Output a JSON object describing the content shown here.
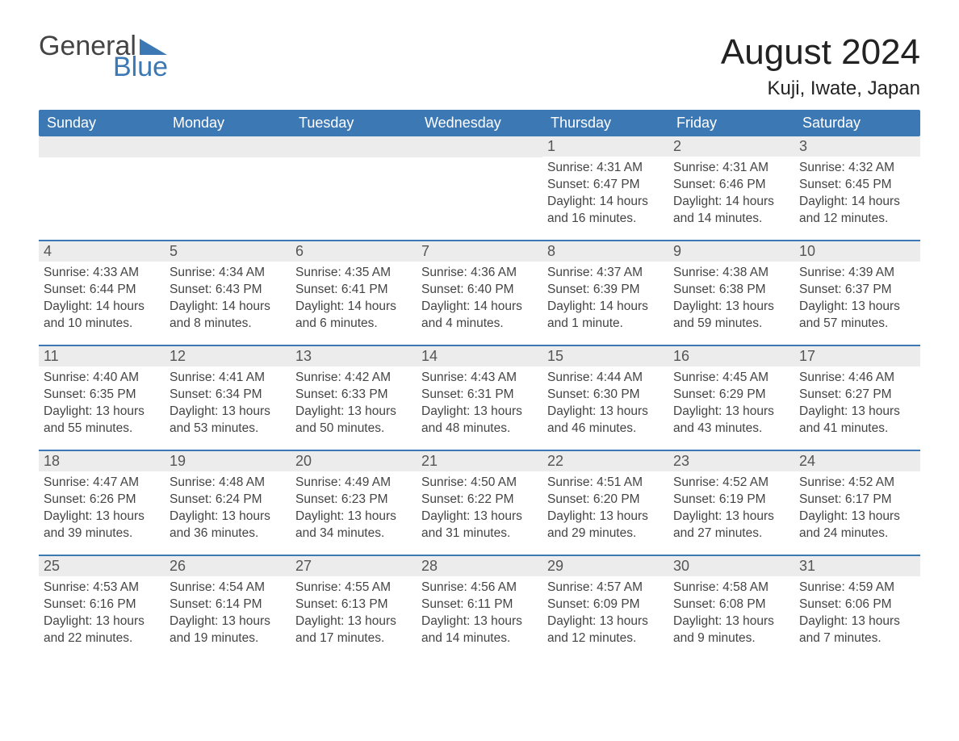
{
  "logo": {
    "line1": "General",
    "line2": "Blue",
    "accent_color": "#3C78B4"
  },
  "title": "August 2024",
  "location": "Kuji, Iwate, Japan",
  "colors": {
    "header_bg": "#3C78B4",
    "header_text": "#ffffff",
    "day_bar_bg": "#ececec",
    "day_bar_text": "#555555",
    "body_text": "#444444",
    "rule": "#3C78B4",
    "background": "#ffffff"
  },
  "typography": {
    "title_fontsize": 44,
    "location_fontsize": 24,
    "header_fontsize": 18,
    "daynum_fontsize": 18,
    "body_fontsize": 15.5
  },
  "calendar": {
    "type": "table",
    "columns": [
      "Sunday",
      "Monday",
      "Tuesday",
      "Wednesday",
      "Thursday",
      "Friday",
      "Saturday"
    ],
    "weeks": [
      [
        null,
        null,
        null,
        null,
        {
          "day": "1",
          "sunrise": "4:31 AM",
          "sunset": "6:47 PM",
          "daylight": "14 hours and 16 minutes."
        },
        {
          "day": "2",
          "sunrise": "4:31 AM",
          "sunset": "6:46 PM",
          "daylight": "14 hours and 14 minutes."
        },
        {
          "day": "3",
          "sunrise": "4:32 AM",
          "sunset": "6:45 PM",
          "daylight": "14 hours and 12 minutes."
        }
      ],
      [
        {
          "day": "4",
          "sunrise": "4:33 AM",
          "sunset": "6:44 PM",
          "daylight": "14 hours and 10 minutes."
        },
        {
          "day": "5",
          "sunrise": "4:34 AM",
          "sunset": "6:43 PM",
          "daylight": "14 hours and 8 minutes."
        },
        {
          "day": "6",
          "sunrise": "4:35 AM",
          "sunset": "6:41 PM",
          "daylight": "14 hours and 6 minutes."
        },
        {
          "day": "7",
          "sunrise": "4:36 AM",
          "sunset": "6:40 PM",
          "daylight": "14 hours and 4 minutes."
        },
        {
          "day": "8",
          "sunrise": "4:37 AM",
          "sunset": "6:39 PM",
          "daylight": "14 hours and 1 minute."
        },
        {
          "day": "9",
          "sunrise": "4:38 AM",
          "sunset": "6:38 PM",
          "daylight": "13 hours and 59 minutes."
        },
        {
          "day": "10",
          "sunrise": "4:39 AM",
          "sunset": "6:37 PM",
          "daylight": "13 hours and 57 minutes."
        }
      ],
      [
        {
          "day": "11",
          "sunrise": "4:40 AM",
          "sunset": "6:35 PM",
          "daylight": "13 hours and 55 minutes."
        },
        {
          "day": "12",
          "sunrise": "4:41 AM",
          "sunset": "6:34 PM",
          "daylight": "13 hours and 53 minutes."
        },
        {
          "day": "13",
          "sunrise": "4:42 AM",
          "sunset": "6:33 PM",
          "daylight": "13 hours and 50 minutes."
        },
        {
          "day": "14",
          "sunrise": "4:43 AM",
          "sunset": "6:31 PM",
          "daylight": "13 hours and 48 minutes."
        },
        {
          "day": "15",
          "sunrise": "4:44 AM",
          "sunset": "6:30 PM",
          "daylight": "13 hours and 46 minutes."
        },
        {
          "day": "16",
          "sunrise": "4:45 AM",
          "sunset": "6:29 PM",
          "daylight": "13 hours and 43 minutes."
        },
        {
          "day": "17",
          "sunrise": "4:46 AM",
          "sunset": "6:27 PM",
          "daylight": "13 hours and 41 minutes."
        }
      ],
      [
        {
          "day": "18",
          "sunrise": "4:47 AM",
          "sunset": "6:26 PM",
          "daylight": "13 hours and 39 minutes."
        },
        {
          "day": "19",
          "sunrise": "4:48 AM",
          "sunset": "6:24 PM",
          "daylight": "13 hours and 36 minutes."
        },
        {
          "day": "20",
          "sunrise": "4:49 AM",
          "sunset": "6:23 PM",
          "daylight": "13 hours and 34 minutes."
        },
        {
          "day": "21",
          "sunrise": "4:50 AM",
          "sunset": "6:22 PM",
          "daylight": "13 hours and 31 minutes."
        },
        {
          "day": "22",
          "sunrise": "4:51 AM",
          "sunset": "6:20 PM",
          "daylight": "13 hours and 29 minutes."
        },
        {
          "day": "23",
          "sunrise": "4:52 AM",
          "sunset": "6:19 PM",
          "daylight": "13 hours and 27 minutes."
        },
        {
          "day": "24",
          "sunrise": "4:52 AM",
          "sunset": "6:17 PM",
          "daylight": "13 hours and 24 minutes."
        }
      ],
      [
        {
          "day": "25",
          "sunrise": "4:53 AM",
          "sunset": "6:16 PM",
          "daylight": "13 hours and 22 minutes."
        },
        {
          "day": "26",
          "sunrise": "4:54 AM",
          "sunset": "6:14 PM",
          "daylight": "13 hours and 19 minutes."
        },
        {
          "day": "27",
          "sunrise": "4:55 AM",
          "sunset": "6:13 PM",
          "daylight": "13 hours and 17 minutes."
        },
        {
          "day": "28",
          "sunrise": "4:56 AM",
          "sunset": "6:11 PM",
          "daylight": "13 hours and 14 minutes."
        },
        {
          "day": "29",
          "sunrise": "4:57 AM",
          "sunset": "6:09 PM",
          "daylight": "13 hours and 12 minutes."
        },
        {
          "day": "30",
          "sunrise": "4:58 AM",
          "sunset": "6:08 PM",
          "daylight": "13 hours and 9 minutes."
        },
        {
          "day": "31",
          "sunrise": "4:59 AM",
          "sunset": "6:06 PM",
          "daylight": "13 hours and 7 minutes."
        }
      ]
    ]
  },
  "labels": {
    "sunrise": "Sunrise: ",
    "sunset": "Sunset: ",
    "daylight": "Daylight: "
  }
}
